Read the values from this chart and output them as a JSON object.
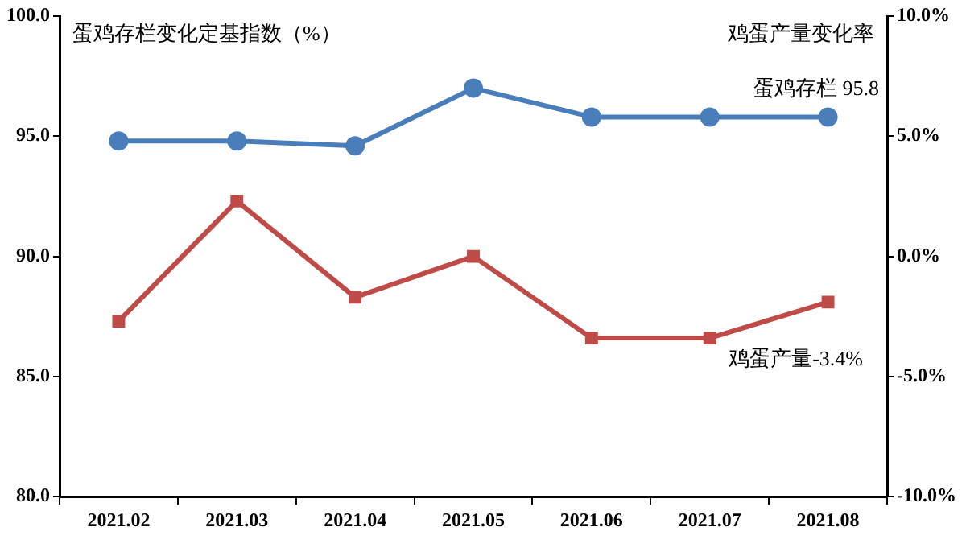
{
  "chart_data": {
    "type": "line",
    "ylabel": "蛋鸡存栏变化定基指数（%）",
    "y2label": "鸡蛋产量变化率",
    "categories": [
      "2021.02",
      "2021.03",
      "2021.04",
      "2021.05",
      "2021.06",
      "2021.07",
      "2021.08"
    ],
    "series": [
      {
        "color": "#4a7ebb",
        "marker": "circle",
        "values": [
          94.8,
          94.8,
          94.6,
          97.0,
          95.8,
          95.8,
          95.8
        ]
      },
      {
        "color": "#be4b48",
        "marker": "square",
        "axis": "y2",
        "values": [
          -2.7,
          2.3,
          -1.7,
          0.0,
          -3.4,
          -3.4,
          -1.9
        ]
      }
    ],
    "ylim": [
      80,
      100
    ],
    "yticks": [
      {
        "value": 80,
        "label": "80.0"
      },
      {
        "value": 85,
        "label": "85.0"
      },
      {
        "value": 90,
        "label": "90.0"
      },
      {
        "value": 95,
        "label": "95.0"
      },
      {
        "value": 100,
        "label": "100.0"
      }
    ],
    "y2lim": [
      -10,
      10
    ],
    "y2ticks": [
      {
        "value": -10,
        "label": "-10.0%"
      },
      {
        "value": -5,
        "label": "-5.0%"
      },
      {
        "value": 0,
        "label": "0.0%"
      },
      {
        "value": 5,
        "label": "5.0%"
      },
      {
        "value": 10,
        "label": "10.0%"
      }
    ],
    "annotations": [
      "蛋鸡存栏 95.8",
      "鸡蛋产量-3.4%"
    ],
    "grid": false,
    "legend": false,
    "line_style": "solid"
  }
}
